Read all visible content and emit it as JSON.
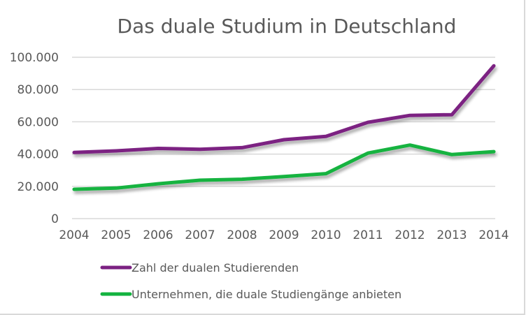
{
  "chart_data": {
    "type": "line",
    "title": "Das duale Studium in Deutschland",
    "xlabel": "",
    "ylabel": "",
    "x": [
      "2004",
      "2005",
      "2006",
      "2007",
      "2008",
      "2009",
      "2010",
      "2011",
      "2012",
      "2013",
      "2014"
    ],
    "ylim": [
      0,
      100000
    ],
    "yticks": [
      0,
      20000,
      40000,
      60000,
      80000,
      100000
    ],
    "ytick_labels": [
      "0",
      "20.000",
      "40.000",
      "60.000",
      "80.000",
      "100.000"
    ],
    "grid": true,
    "legend_position": "bottom",
    "series": [
      {
        "name": "Zahl der dualen Studierenden",
        "color": "#7b2182",
        "values": [
          41000,
          42000,
          43500,
          43000,
          44000,
          48900,
          51000,
          59700,
          64000,
          64400,
          94700
        ]
      },
      {
        "name": "Unternehmen, die duale Studiengänge anbieten",
        "color": "#13b33f",
        "values": [
          18200,
          18900,
          21600,
          23800,
          24400,
          26100,
          27900,
          40600,
          45600,
          39700,
          41500
        ]
      }
    ]
  }
}
